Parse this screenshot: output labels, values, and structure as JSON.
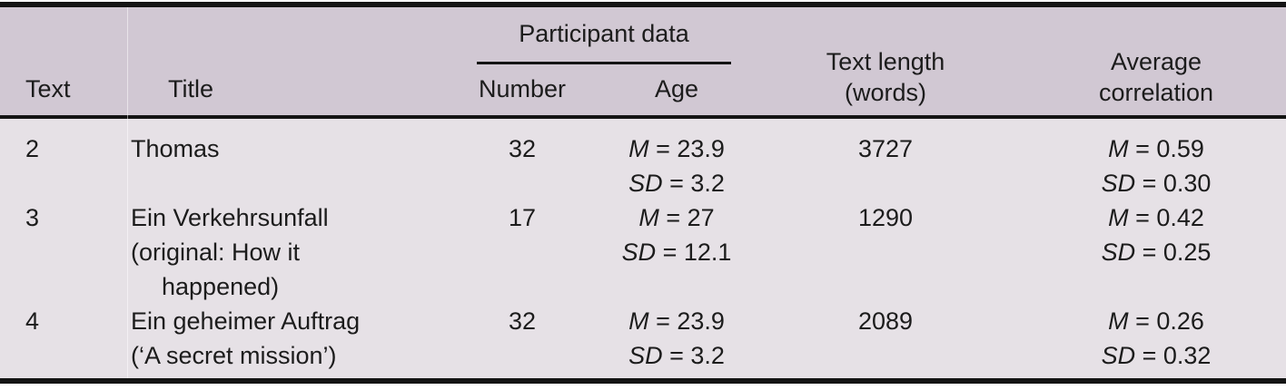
{
  "table": {
    "colors": {
      "header_bg": "#d1c8d3",
      "body_bg": "#e6e1e6",
      "rule": "#141414",
      "text": "#1c1c1c"
    },
    "header": {
      "col_text": "Text",
      "col_title": "Title",
      "group_participant": "Participant data",
      "col_number": "Number",
      "col_age": "Age",
      "col_textlength_line1": "Text length",
      "col_textlength_line2": "(words)",
      "col_avg_line1": "Average",
      "col_avg_line2": "correlation"
    },
    "rows": [
      {
        "text": "2",
        "title_line1": "Thomas",
        "number": "32",
        "age": {
          "m_label": "M",
          "m_rest": "= 23.9",
          "sd_label": "SD",
          "sd_rest": "= 3.2"
        },
        "length": "3727",
        "corr": {
          "m_label": "M",
          "m_rest": "= 0.59",
          "sd_label": "SD",
          "sd_rest": "= 0.30"
        }
      },
      {
        "text": "3",
        "title_line1": "Ein Verkehrsunfall",
        "title_line2": "(original: How it",
        "title_line3": "happened)",
        "number": "17",
        "age": {
          "m_label": "M",
          "m_rest": "= 27",
          "sd_label": "SD",
          "sd_rest": "= 12.1"
        },
        "length": "1290",
        "corr": {
          "m_label": "M",
          "m_rest": "= 0.42",
          "sd_label": "SD",
          "sd_rest": "= 0.25"
        }
      },
      {
        "text": "4",
        "title_line1": "Ein geheimer Auftrag",
        "title_line2": "(‘A secret mission’)",
        "number": "32",
        "age": {
          "m_label": "M",
          "m_rest": "= 23.9",
          "sd_label": "SD",
          "sd_rest": "= 3.2"
        },
        "length": "2089",
        "corr": {
          "m_label": "M",
          "m_rest": "= 0.26",
          "sd_label": "SD",
          "sd_rest": "= 0.32"
        }
      }
    ]
  }
}
